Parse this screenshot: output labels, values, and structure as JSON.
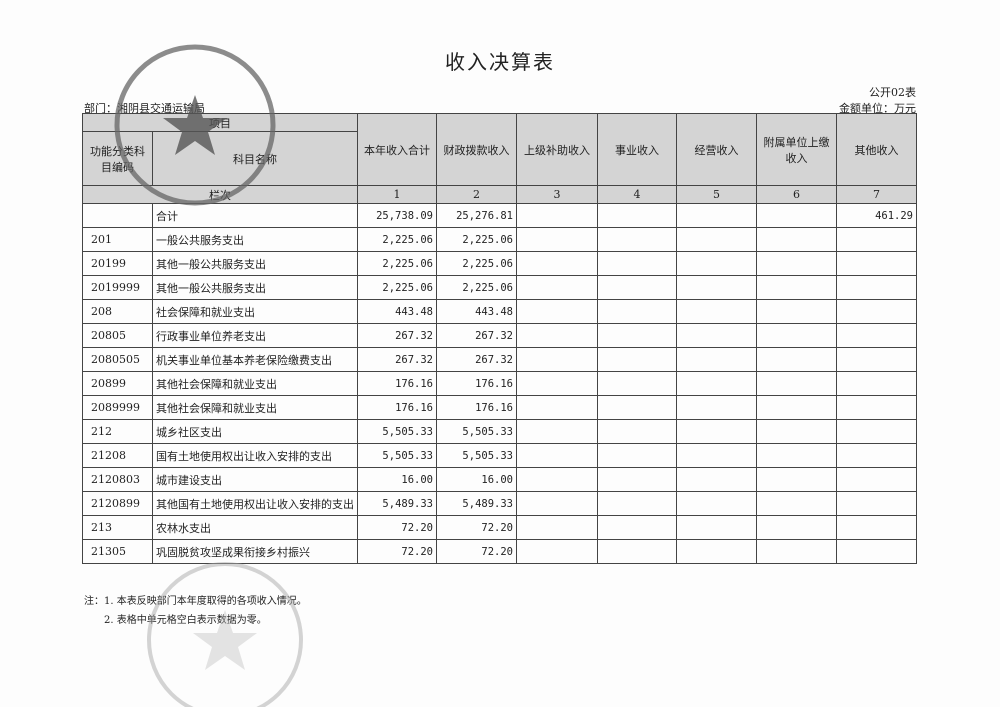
{
  "title": "收入决算表",
  "form_no": "公开02表",
  "department": "部门：湘阴县交通运输局",
  "unit": "金额单位：万元",
  "header": {
    "item": "项目",
    "code": "功能分类科目编码",
    "name": "科目名称",
    "col_index_label": "栏次",
    "columns": [
      "本年收入合计",
      "财政拨款收入",
      "上级补助收入",
      "事业收入",
      "经营收入",
      "附属单位上缴收入",
      "其他收入"
    ],
    "col_numbers": [
      "1",
      "2",
      "3",
      "4",
      "5",
      "6",
      "7"
    ]
  },
  "rows": [
    {
      "code": "",
      "name": "合计",
      "v": [
        "25,738.09",
        "25,276.81",
        "",
        "",
        "",
        "",
        "461.29"
      ]
    },
    {
      "code": "201",
      "name": "一般公共服务支出",
      "v": [
        "2,225.06",
        "2,225.06",
        "",
        "",
        "",
        "",
        ""
      ]
    },
    {
      "code": "20199",
      "name": "其他一般公共服务支出",
      "v": [
        "2,225.06",
        "2,225.06",
        "",
        "",
        "",
        "",
        ""
      ]
    },
    {
      "code": "2019999",
      "name": "其他一般公共服务支出",
      "v": [
        "2,225.06",
        "2,225.06",
        "",
        "",
        "",
        "",
        ""
      ]
    },
    {
      "code": "208",
      "name": "社会保障和就业支出",
      "v": [
        "443.48",
        "443.48",
        "",
        "",
        "",
        "",
        ""
      ]
    },
    {
      "code": "20805",
      "name": "行政事业单位养老支出",
      "v": [
        "267.32",
        "267.32",
        "",
        "",
        "",
        "",
        ""
      ]
    },
    {
      "code": "2080505",
      "name": "机关事业单位基本养老保险缴费支出",
      "v": [
        "267.32",
        "267.32",
        "",
        "",
        "",
        "",
        ""
      ]
    },
    {
      "code": "20899",
      "name": "其他社会保障和就业支出",
      "v": [
        "176.16",
        "176.16",
        "",
        "",
        "",
        "",
        ""
      ]
    },
    {
      "code": "2089999",
      "name": "其他社会保障和就业支出",
      "v": [
        "176.16",
        "176.16",
        "",
        "",
        "",
        "",
        ""
      ]
    },
    {
      "code": "212",
      "name": "城乡社区支出",
      "v": [
        "5,505.33",
        "5,505.33",
        "",
        "",
        "",
        "",
        ""
      ]
    },
    {
      "code": "21208",
      "name": "国有土地使用权出让收入安排的支出",
      "v": [
        "5,505.33",
        "5,505.33",
        "",
        "",
        "",
        "",
        ""
      ]
    },
    {
      "code": "2120803",
      "name": "城市建设支出",
      "v": [
        "16.00",
        "16.00",
        "",
        "",
        "",
        "",
        ""
      ]
    },
    {
      "code": "2120899",
      "name": "其他国有土地使用权出让收入安排的支出",
      "v": [
        "5,489.33",
        "5,489.33",
        "",
        "",
        "",
        "",
        ""
      ]
    },
    {
      "code": "213",
      "name": "农林水支出",
      "v": [
        "72.20",
        "72.20",
        "",
        "",
        "",
        "",
        ""
      ]
    },
    {
      "code": "21305",
      "name": "巩固脱贫攻坚成果衔接乡村振兴",
      "v": [
        "72.20",
        "72.20",
        "",
        "",
        "",
        "",
        ""
      ]
    }
  ],
  "notes": [
    "注：1. 本表反映部门本年度取得的各项收入情况。",
    "2. 表格中单元格空白表示数据为零。"
  ],
  "stamp_text": "湘阴县交通运输局"
}
